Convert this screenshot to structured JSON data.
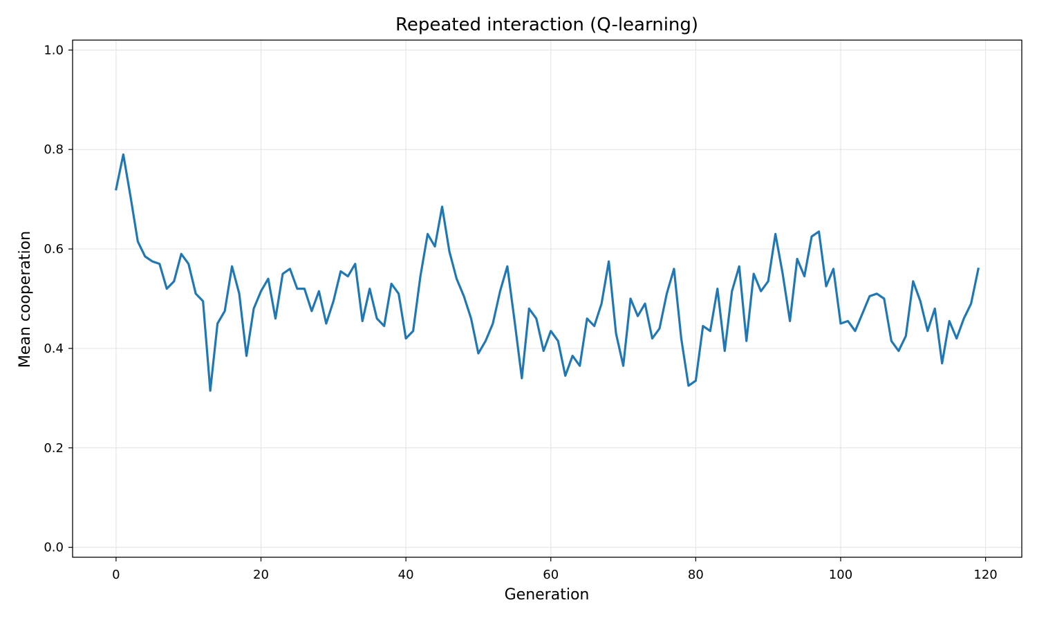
{
  "chart_data": {
    "type": "line",
    "title": "Repeated interaction (Q-learning)",
    "xlabel": "Generation",
    "ylabel": "Mean cooperation",
    "xlim": [
      -6,
      125
    ],
    "ylim": [
      -0.02,
      1.02
    ],
    "xticks": [
      0,
      20,
      40,
      60,
      80,
      100,
      120
    ],
    "yticks": [
      0.0,
      0.2,
      0.4,
      0.6,
      0.8,
      1.0
    ],
    "xtick_labels": [
      "0",
      "20",
      "40",
      "60",
      "80",
      "100",
      "120"
    ],
    "ytick_labels": [
      "0.0",
      "0.2",
      "0.4",
      "0.6",
      "0.8",
      "1.0"
    ],
    "grid": true,
    "line_color": "#1f77b4",
    "x_start": 0,
    "values": [
      0.72,
      0.79,
      0.705,
      0.615,
      0.585,
      0.575,
      0.57,
      0.52,
      0.535,
      0.59,
      0.57,
      0.51,
      0.495,
      0.315,
      0.45,
      0.475,
      0.565,
      0.51,
      0.385,
      0.48,
      0.515,
      0.54,
      0.46,
      0.55,
      0.56,
      0.52,
      0.52,
      0.475,
      0.515,
      0.45,
      0.495,
      0.555,
      0.545,
      0.57,
      0.455,
      0.52,
      0.46,
      0.445,
      0.53,
      0.51,
      0.42,
      0.435,
      0.545,
      0.63,
      0.605,
      0.685,
      0.595,
      0.54,
      0.505,
      0.46,
      0.39,
      0.415,
      0.45,
      0.515,
      0.565,
      0.455,
      0.34,
      0.48,
      0.46,
      0.395,
      0.435,
      0.415,
      0.345,
      0.385,
      0.365,
      0.46,
      0.445,
      0.49,
      0.575,
      0.43,
      0.365,
      0.5,
      0.465,
      0.49,
      0.42,
      0.44,
      0.51,
      0.56,
      0.42,
      0.325,
      0.335,
      0.445,
      0.435,
      0.52,
      0.395,
      0.515,
      0.565,
      0.415,
      0.55,
      0.515,
      0.535,
      0.63,
      0.55,
      0.455,
      0.58,
      0.545,
      0.625,
      0.635,
      0.525,
      0.56,
      0.45,
      0.455,
      0.435,
      0.47,
      0.505,
      0.51,
      0.5,
      0.415,
      0.395,
      0.425,
      0.535,
      0.495,
      0.435,
      0.48,
      0.37,
      0.455,
      0.42,
      0.46,
      0.49,
      0.56
    ]
  }
}
